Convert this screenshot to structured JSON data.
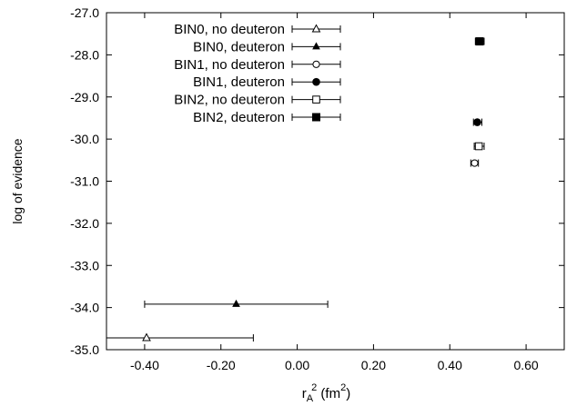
{
  "chart_data": {
    "type": "scatter",
    "title": "",
    "xlabel_base": "r",
    "xlabel_sub": "A",
    "xlabel_sup": "2",
    "xlabel_unit_open": " (fm",
    "xlabel_unit_sup": "2",
    "xlabel_unit_close": ")",
    "ylabel": "log of evidence",
    "xlim": [
      -0.5,
      0.7
    ],
    "ylim": [
      -35.0,
      -27.0
    ],
    "x_ticks": [
      -0.4,
      -0.2,
      0.0,
      0.2,
      0.4,
      0.6
    ],
    "x_tick_labels": [
      "-0.40",
      "-0.20",
      "0.00",
      "0.20",
      "0.40",
      "0.60"
    ],
    "y_ticks": [
      -27,
      -28,
      -29,
      -30,
      -31,
      -32,
      -33,
      -34,
      -35
    ],
    "y_tick_labels": [
      "-27.0",
      "-28.0",
      "-29.0",
      "-30.0",
      "-31.0",
      "-32.0",
      "-33.0",
      "-34.0",
      "-35.0"
    ],
    "legend_position": "top-left",
    "series": [
      {
        "name": "BIN0, no deuteron",
        "marker": "triangle-open",
        "points": [
          {
            "x": -0.395,
            "xerr_low": -0.51,
            "xerr_high": -0.115,
            "y": -34.72
          }
        ]
      },
      {
        "name": "BIN0, deuteron",
        "marker": "triangle-filled",
        "points": [
          {
            "x": -0.16,
            "xerr_low": -0.4,
            "xerr_high": 0.08,
            "y": -33.92
          }
        ]
      },
      {
        "name": "BIN1, no deuteron",
        "marker": "circle-open",
        "points": [
          {
            "x": 0.465,
            "xerr_low": 0.455,
            "xerr_high": 0.475,
            "y": -30.57
          }
        ]
      },
      {
        "name": "BIN1, deuteron",
        "marker": "circle-filled",
        "points": [
          {
            "x": 0.472,
            "xerr_low": 0.462,
            "xerr_high": 0.484,
            "y": -29.6
          }
        ]
      },
      {
        "name": "BIN2, no deuteron",
        "marker": "square-open",
        "points": [
          {
            "x": 0.476,
            "xerr_low": 0.464,
            "xerr_high": 0.49,
            "y": -30.17
          }
        ]
      },
      {
        "name": "BIN2, deuteron",
        "marker": "square-filled",
        "points": [
          {
            "x": 0.478,
            "xerr_low": 0.467,
            "xerr_high": 0.49,
            "y": -27.68
          }
        ]
      }
    ]
  }
}
